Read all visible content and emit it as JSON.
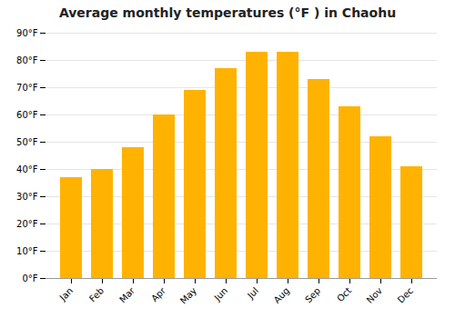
{
  "chart_data": {
    "type": "bar",
    "title": "Average monthly temperatures (°F ) in Chaohu",
    "categories": [
      "Jan",
      "Feb",
      "Mar",
      "Apr",
      "May",
      "Jun",
      "Jul",
      "Aug",
      "Sep",
      "Oct",
      "Nov",
      "Dec"
    ],
    "values": [
      37,
      40,
      48,
      60,
      69,
      77,
      83,
      83,
      73,
      63,
      52,
      41
    ],
    "color": "#FFB300",
    "ylim": [
      0,
      90
    ],
    "yticks": [
      {
        "value": 0,
        "label": "0°F"
      },
      {
        "value": 10,
        "label": "10°F"
      },
      {
        "value": 20,
        "label": "20°F"
      },
      {
        "value": 30,
        "label": "30°F"
      },
      {
        "value": 40,
        "label": "40°F"
      },
      {
        "value": 50,
        "label": "50°F"
      },
      {
        "value": 60,
        "label": "60°F"
      },
      {
        "value": 70,
        "label": "70°F"
      },
      {
        "value": 80,
        "label": "80°F"
      },
      {
        "value": 90,
        "label": "90°F"
      }
    ],
    "grid": true
  }
}
